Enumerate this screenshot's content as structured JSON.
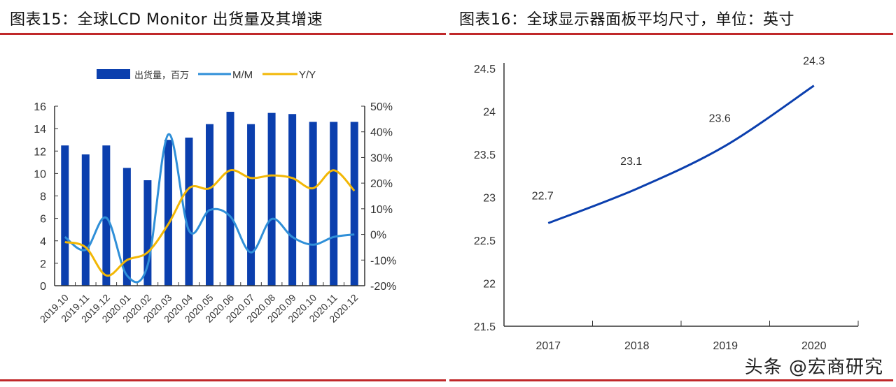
{
  "titles": {
    "left": "图表15：全球LCD Monitor 出货量及其增速",
    "right": "图表16：全球显示器面板平均尺寸，单位：英寸"
  },
  "watermark": "头条 @宏商研究",
  "chart_data": [
    {
      "type": "bar",
      "categories": [
        "2019.10",
        "2019.11",
        "2019.12",
        "2020.01",
        "2020.02",
        "2020.03",
        "2020.04",
        "2020.05",
        "2020.06",
        "2020.07",
        "2020.08",
        "2020.09",
        "2020.10",
        "2020.11",
        "2020.12"
      ],
      "series": [
        {
          "name": "出货量，百万",
          "type": "bar",
          "axis": "left",
          "color": "#0b3fae",
          "values": [
            12.5,
            11.7,
            12.5,
            10.5,
            9.4,
            13.0,
            13.2,
            14.4,
            15.5,
            14.4,
            15.4,
            15.3,
            14.6,
            14.6,
            14.6
          ]
        },
        {
          "name": "M/M",
          "type": "line",
          "axis": "right",
          "color": "#2f8fd8",
          "values": [
            -1,
            -6,
            6.5,
            -16,
            -12,
            39,
            1.5,
            9.5,
            7,
            -7,
            6,
            -1,
            -4,
            -1,
            0
          ]
        },
        {
          "name": "Y/Y",
          "type": "line",
          "axis": "right",
          "color": "#f2b705",
          "values": [
            -3,
            -5,
            -16,
            -10,
            -7,
            4,
            18,
            18,
            25,
            22,
            23,
            22,
            18,
            25,
            17
          ]
        }
      ],
      "y_left": {
        "range": [
          0,
          16
        ],
        "ticks": [
          "0",
          "2",
          "4",
          "6",
          "8",
          "10",
          "12",
          "14",
          "16"
        ]
      },
      "y_right": {
        "range": [
          -20,
          50
        ],
        "ticks": [
          "-20%",
          "-10%",
          "0%",
          "10%",
          "20%",
          "30%",
          "40%",
          "50%"
        ]
      },
      "legend": "top",
      "grid": false
    },
    {
      "type": "line",
      "categories": [
        "2017",
        "2018",
        "2019",
        "2020"
      ],
      "values": [
        22.7,
        23.1,
        23.6,
        24.3
      ],
      "data_labels": [
        "22.7",
        "23.1",
        "23.6",
        "24.3"
      ],
      "color": "#0b3fae",
      "ylim": [
        21.5,
        24.5
      ],
      "y_ticks": [
        "21.5",
        "22",
        "22.5",
        "23",
        "23.5",
        "24",
        "24.5"
      ],
      "grid": false
    }
  ]
}
